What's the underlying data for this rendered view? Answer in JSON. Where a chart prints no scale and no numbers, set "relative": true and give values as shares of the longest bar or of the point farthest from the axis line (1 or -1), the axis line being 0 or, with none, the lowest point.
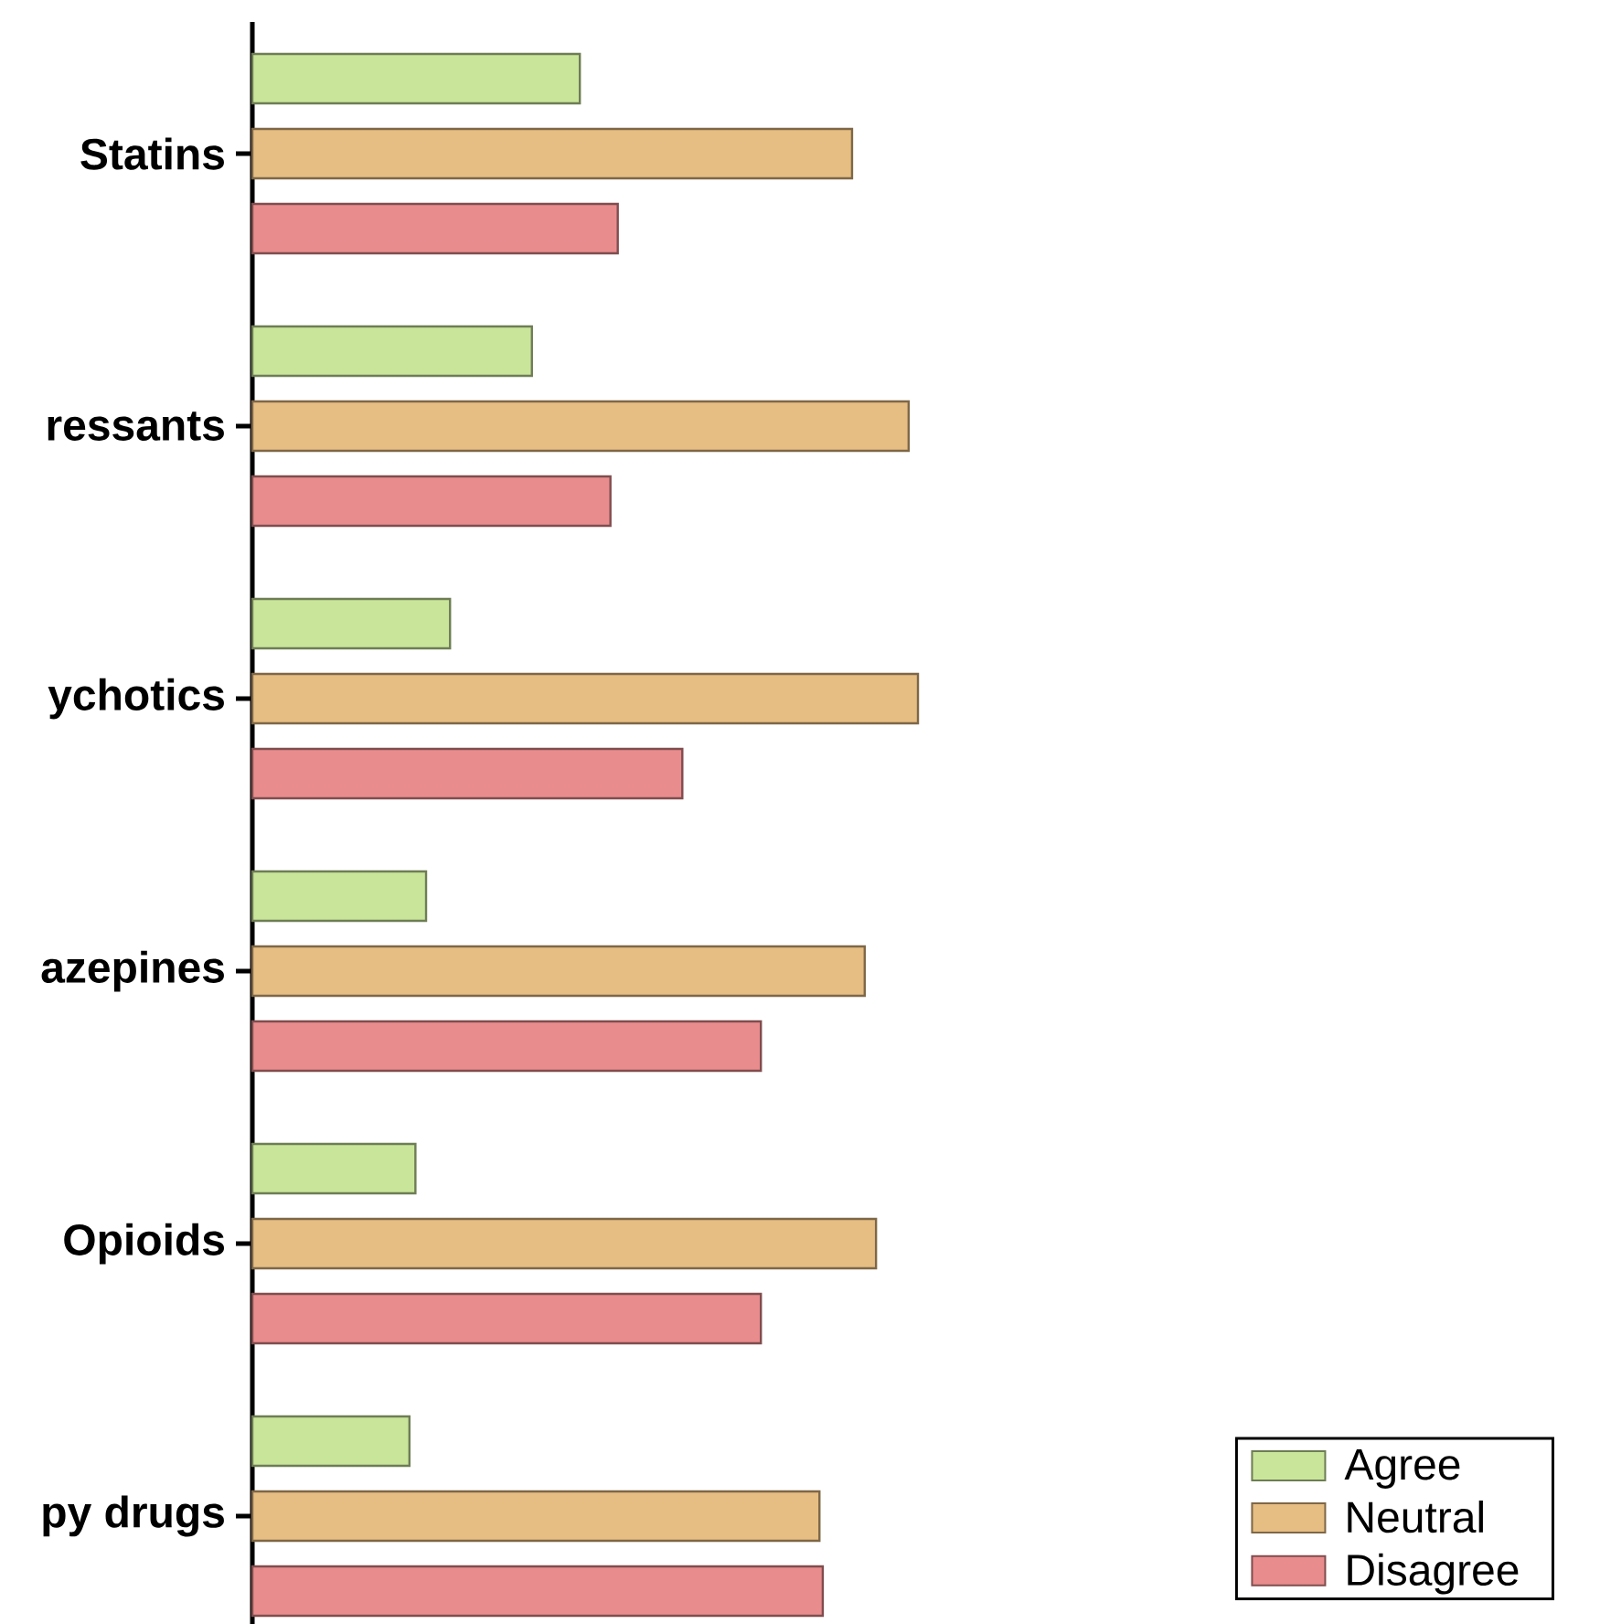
{
  "chart_data": {
    "type": "bar",
    "orientation": "horizontal",
    "relative": true,
    "legend": "bottom right",
    "categories": [
      "Statins",
      "ressants",
      "ychotics",
      "azepines",
      "Opioids",
      "py drugs"
    ],
    "series": [
      {
        "name": "Agree",
        "color": "#c9e59a",
        "values": [
          0.492,
          0.42,
          0.297,
          0.261,
          0.245,
          0.236
        ]
      },
      {
        "name": "Neutral",
        "color": "#e6bd82",
        "values": [
          0.901,
          0.986,
          1,
          0.92,
          0.937,
          0.852
        ]
      },
      {
        "name": "Disagree",
        "color": "#e98c8e",
        "values": [
          0.549,
          0.538,
          0.646,
          0.764,
          0.764,
          0.857
        ]
      }
    ]
  }
}
